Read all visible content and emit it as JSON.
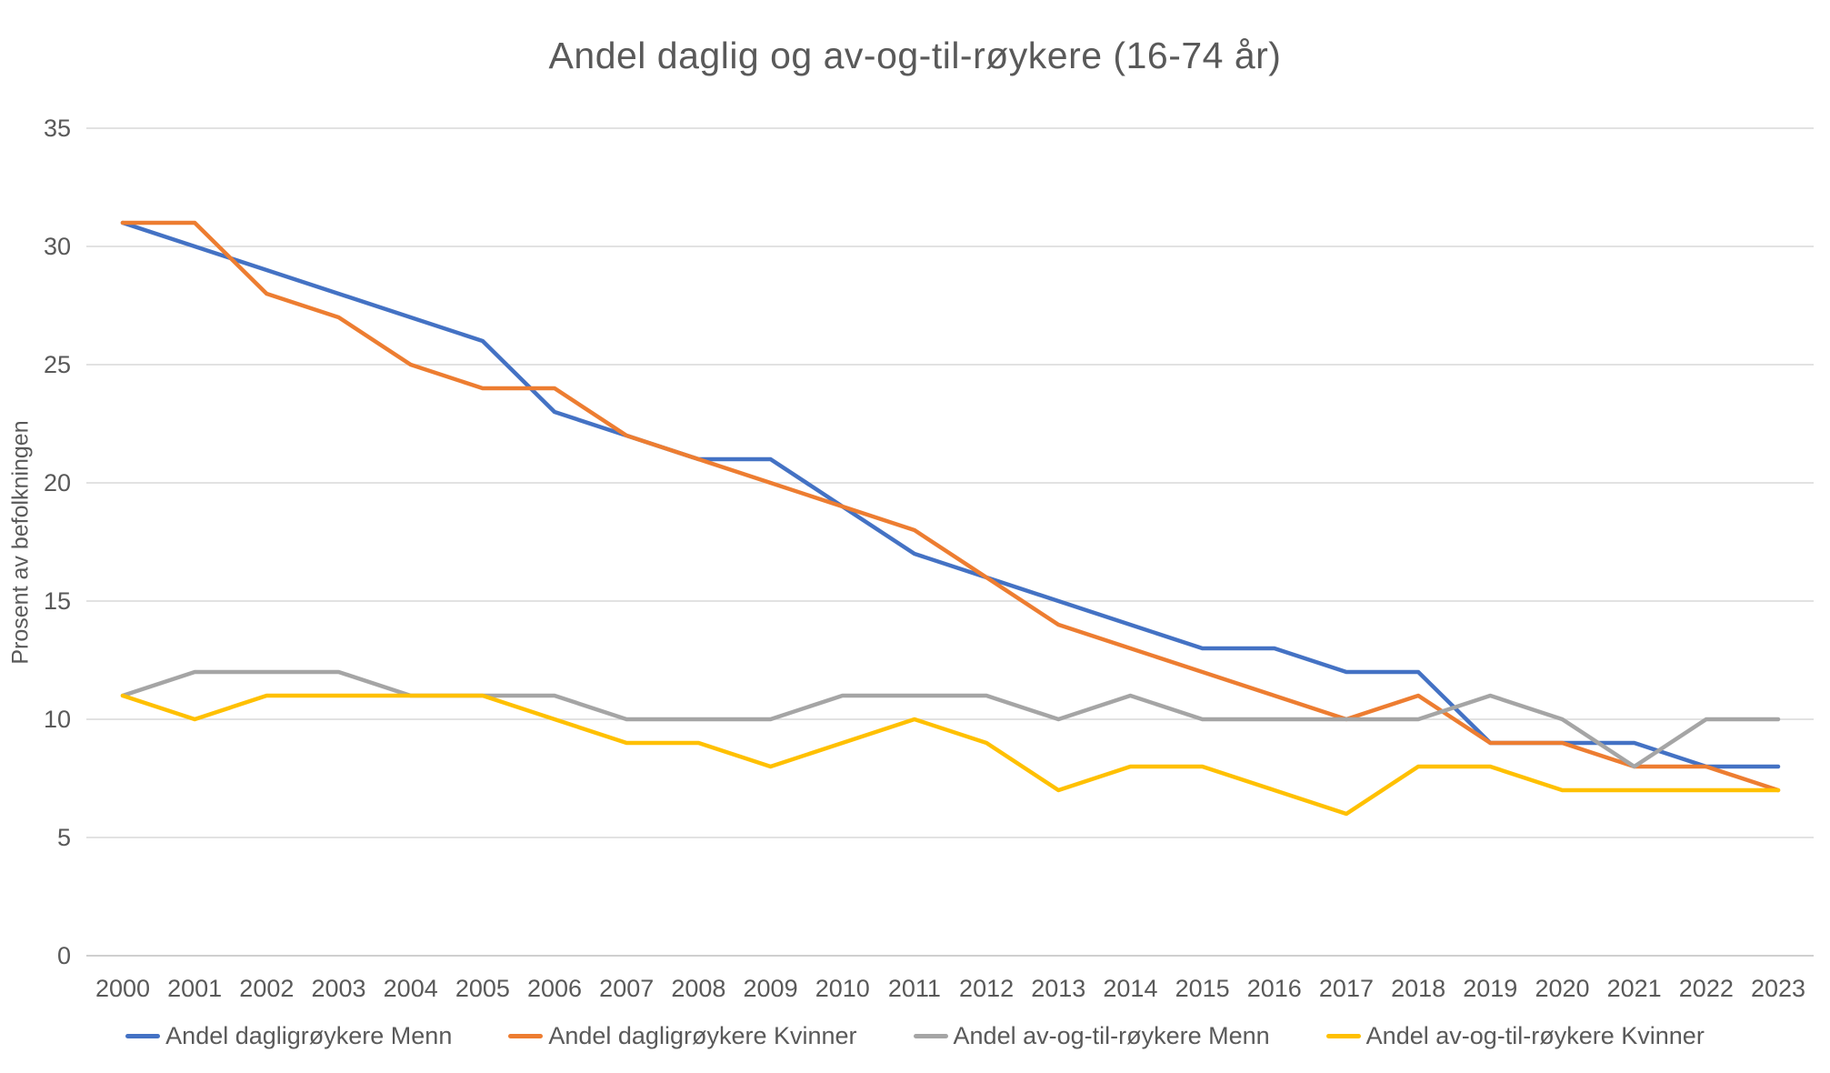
{
  "chart_data": {
    "type": "line",
    "title": "Andel daglig og av-og-til-røykere (16-74 år)",
    "ylabel": "Prosent av befolkningen",
    "xlabel": "",
    "categories": [
      "2000",
      "2001",
      "2002",
      "2003",
      "2004",
      "2005",
      "2006",
      "2007",
      "2008",
      "2009",
      "2010",
      "2011",
      "2012",
      "2013",
      "2014",
      "2015",
      "2016",
      "2017",
      "2018",
      "2019",
      "2020",
      "2021",
      "2022",
      "2023"
    ],
    "y_ticks": [
      0,
      5,
      10,
      15,
      20,
      25,
      30,
      35
    ],
    "ylim": [
      0,
      35
    ],
    "grid": "horizontal",
    "legend_position": "bottom",
    "series": [
      {
        "name": "Andel dagligrøykere Menn",
        "color": "#4472C4",
        "values": [
          31,
          30,
          29,
          28,
          27,
          26,
          23,
          22,
          21,
          21,
          19,
          17,
          16,
          15,
          14,
          13,
          13,
          12,
          12,
          9,
          9,
          9,
          8,
          8
        ]
      },
      {
        "name": "Andel dagligrøykere Kvinner",
        "color": "#ED7D31",
        "values": [
          31,
          31,
          28,
          27,
          25,
          24,
          24,
          22,
          21,
          20,
          19,
          18,
          16,
          14,
          13,
          12,
          11,
          10,
          11,
          9,
          9,
          8,
          8,
          7
        ]
      },
      {
        "name": "Andel av-og-til-røykere Menn",
        "color": "#A5A5A5",
        "values": [
          11,
          12,
          12,
          12,
          11,
          11,
          11,
          10,
          10,
          10,
          11,
          11,
          11,
          10,
          11,
          10,
          10,
          10,
          10,
          11,
          10,
          8,
          10,
          10
        ]
      },
      {
        "name": "Andel av-og-til-røykere Kvinner",
        "color": "#FFC000",
        "values": [
          11,
          10,
          11,
          11,
          11,
          11,
          10,
          9,
          9,
          8,
          9,
          10,
          9,
          7,
          8,
          8,
          7,
          6,
          8,
          8,
          7,
          7,
          7,
          7
        ]
      }
    ],
    "colors": {
      "gridline": "#D9D9D9",
      "axis_line": "#BFBFBF",
      "text": "#595959"
    }
  }
}
